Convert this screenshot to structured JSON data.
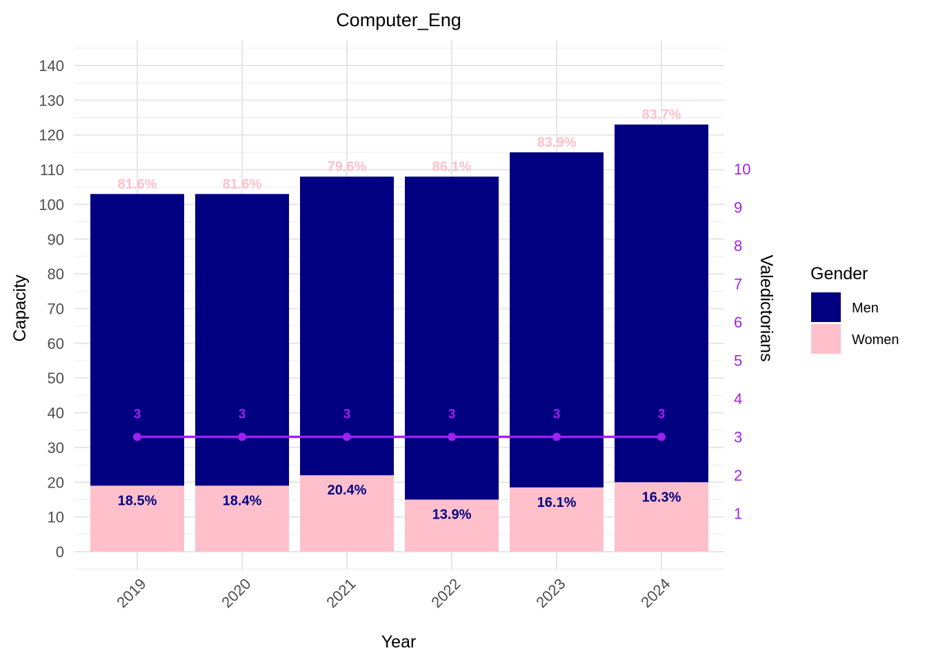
{
  "chart_data": {
    "type": "bar",
    "stacked": true,
    "title": "Computer_Eng",
    "xlabel": "Year",
    "ylabel": "Capacity",
    "y2label": "Valedictorians",
    "categories": [
      "2019",
      "2020",
      "2021",
      "2022",
      "2023",
      "2024"
    ],
    "totals": [
      103,
      103,
      108,
      108,
      115,
      123
    ],
    "series": [
      {
        "name": "Women",
        "color": "#FFC0CB",
        "values": [
          19,
          19,
          22,
          15,
          18.5,
          20
        ],
        "labels": [
          "18.5%",
          "18.4%",
          "20.4%",
          "13.9%",
          "16.1%",
          "16.3%"
        ],
        "label_color": "#000080"
      },
      {
        "name": "Men",
        "color": "#000080",
        "values": [
          84,
          84,
          86,
          93,
          96.5,
          103
        ],
        "labels": [
          "81.6%",
          "81.6%",
          "79.6%",
          "86.1%",
          "83.9%",
          "83.7%"
        ],
        "label_color": "#FFC0CB"
      }
    ],
    "line": {
      "name": "Valedictorians",
      "color": "#A020F0",
      "values": [
        3,
        3,
        3,
        3,
        3,
        3
      ],
      "labels": [
        "3",
        "3",
        "3",
        "3",
        "3",
        "3"
      ]
    },
    "ylim": [
      0,
      140
    ],
    "yticks": [
      "0",
      "10",
      "20",
      "30",
      "40",
      "50",
      "60",
      "70",
      "80",
      "90",
      "100",
      "110",
      "120",
      "130",
      "140"
    ],
    "y2ticks": [
      "1",
      "2",
      "3",
      "4",
      "5",
      "6",
      "7",
      "8",
      "9",
      "10"
    ],
    "y2_color": "#A020F0",
    "grid": true,
    "legend": {
      "title": "Gender",
      "position": "right",
      "entries": [
        {
          "label": "Men",
          "color": "#000080"
        },
        {
          "label": "Women",
          "color": "#FFC0CB"
        }
      ]
    }
  }
}
